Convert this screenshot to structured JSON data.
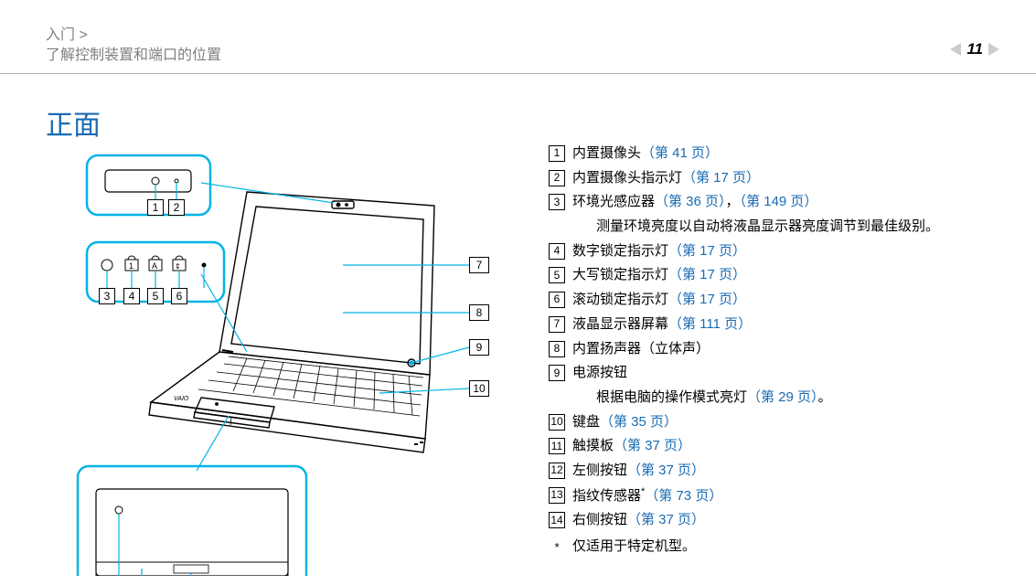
{
  "header": {
    "breadcrumb_1": "入门 >",
    "breadcrumb_2": "了解控制装置和端口的位置"
  },
  "page_number": "11",
  "title": "正面",
  "link_color": "#1a6bb3",
  "text_color": "#000000",
  "grey_color": "#808080",
  "accent_color": "#00b4e6",
  "legend": [
    {
      "num": "1",
      "text": "内置摄像头",
      "link": "（第 41 页）"
    },
    {
      "num": "2",
      "text": "内置摄像头指示灯",
      "link": "（第 17 页）"
    },
    {
      "num": "3",
      "text": "环境光感应器",
      "link": "（第 36 页）",
      "link2_prefix": "，",
      "link2": "（第 149 页）",
      "sub": "测量环境亮度以自动将液晶显示器亮度调节到最佳级别。"
    },
    {
      "num": "4",
      "text": "数字锁定指示灯",
      "link": "（第 17 页）"
    },
    {
      "num": "5",
      "text": "大写锁定指示灯",
      "link": "（第 17 页）"
    },
    {
      "num": "6",
      "text": "滚动锁定指示灯",
      "link": "（第 17 页）"
    },
    {
      "num": "7",
      "text": "液晶显示器屏幕",
      "link": "（第 111 页）"
    },
    {
      "num": "8",
      "text": "内置扬声器（立体声）"
    },
    {
      "num": "9",
      "text": "电源按钮",
      "sub_prefix": "根据电脑的操作模式亮灯",
      "sub_link": "（第 29 页）",
      "sub_suffix": "。"
    },
    {
      "num": "10",
      "text": "键盘",
      "link": "（第 35 页）"
    },
    {
      "num": "11",
      "text": "触摸板",
      "link": "（第 37 页）"
    },
    {
      "num": "12",
      "text": "左侧按钮",
      "link": "（第 37 页）"
    },
    {
      "num": "13",
      "text": "指纹传感器",
      "super": "*",
      "link": "（第 73 页）"
    },
    {
      "num": "14",
      "text": "右侧按钮",
      "link": "（第 37 页）"
    }
  ],
  "footnote": "仅适用于特定机型。",
  "callout_labels": [
    "1",
    "2",
    "3",
    "4",
    "5",
    "6",
    "7",
    "8",
    "9",
    "10"
  ]
}
